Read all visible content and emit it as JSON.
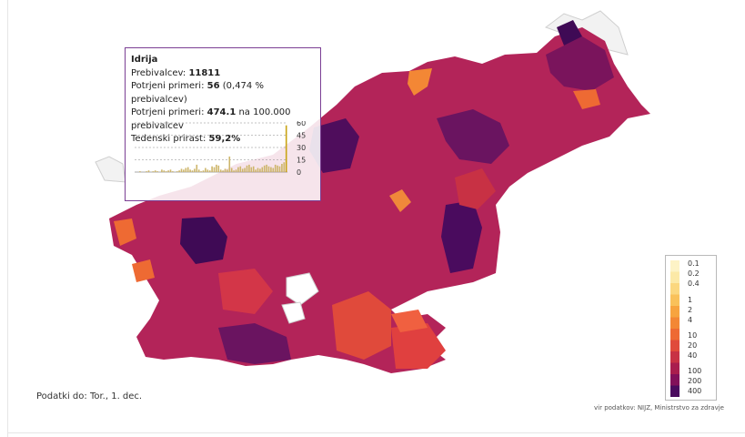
{
  "tooltip": {
    "region": "Idrija",
    "population_label": "Prebivalcev:",
    "population": "11811",
    "confirmed_label": "Potrjeni primeri:",
    "confirmed": "56",
    "confirmed_pct": "(0,474 % prebivalcev)",
    "rate_label": "Potrjeni primeri:",
    "rate": "474.1",
    "rate_suffix": "na 100.000 prebivalcev",
    "growth_label": "Tedenski prirast:",
    "growth": "59,2%",
    "spark_ticks": [
      "60",
      "45",
      "30",
      "15",
      "0"
    ],
    "spark_values": [
      0,
      0,
      1,
      0,
      0,
      1,
      2,
      0,
      1,
      2,
      1,
      0,
      3,
      2,
      1,
      2,
      3,
      1,
      0,
      1,
      2,
      4,
      3,
      5,
      6,
      3,
      2,
      4,
      9,
      3,
      1,
      2,
      5,
      3,
      2,
      7,
      6,
      9,
      8,
      3,
      2,
      4,
      3,
      19,
      5,
      2,
      3,
      6,
      7,
      4,
      5,
      8,
      9,
      6,
      7,
      3,
      5,
      4,
      6,
      8,
      9,
      7,
      6,
      5,
      9,
      8,
      7,
      10,
      12,
      57
    ]
  },
  "legend": {
    "labels": [
      "0.1",
      "0.2",
      "0.4",
      "1",
      "2",
      "4",
      "10",
      "20",
      "40",
      "100",
      "200",
      "400"
    ],
    "colors": [
      "#fdf3c6",
      "#fce9a7",
      "#fbd77f",
      "#f9c15a",
      "#f7a43f",
      "#f38735",
      "#ee6a33",
      "#e04a3b",
      "#c83144",
      "#a91d4e",
      "#82105a",
      "#4a0b5e"
    ]
  },
  "footer": {
    "date": "Podatki do: Tor., 1. dec.",
    "source": "vir podatkov: NIJZ, Ministrstvo za zdravje"
  }
}
